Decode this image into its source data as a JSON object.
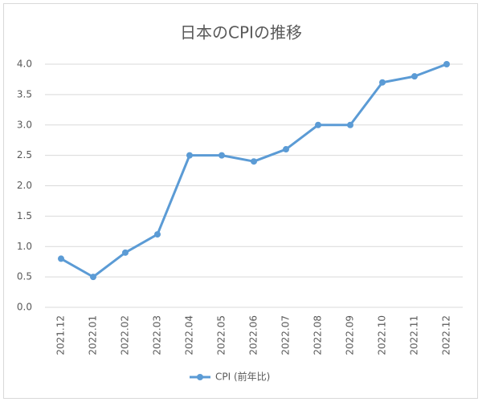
{
  "chart_data": {
    "type": "line",
    "title": "日本のCPIの推移",
    "categories": [
      "2021.12",
      "2022.01",
      "2022.02",
      "2022.03",
      "2022.04",
      "2022.05",
      "2022.06",
      "2022.07",
      "2022.08",
      "2022.09",
      "2022.10",
      "2022.11",
      "2022.12"
    ],
    "series": [
      {
        "name": "CPI (前年比)",
        "color": "#5b9bd5",
        "values": [
          0.8,
          0.5,
          0.9,
          1.2,
          2.5,
          2.5,
          2.4,
          2.6,
          3.0,
          3.0,
          3.7,
          3.8,
          4.0
        ]
      }
    ],
    "ylim": [
      0,
      4
    ],
    "yticks": [
      {
        "value": 0,
        "label": "0.0"
      },
      0.5,
      {
        "value": 1,
        "label": "1.0"
      },
      1.5,
      {
        "value": 2,
        "label": "2.0"
      },
      2.5,
      {
        "value": 3,
        "label": "3.0"
      },
      3.5,
      {
        "value": 4,
        "label": "4.0"
      }
    ],
    "grid": true,
    "legend": "bottom"
  }
}
